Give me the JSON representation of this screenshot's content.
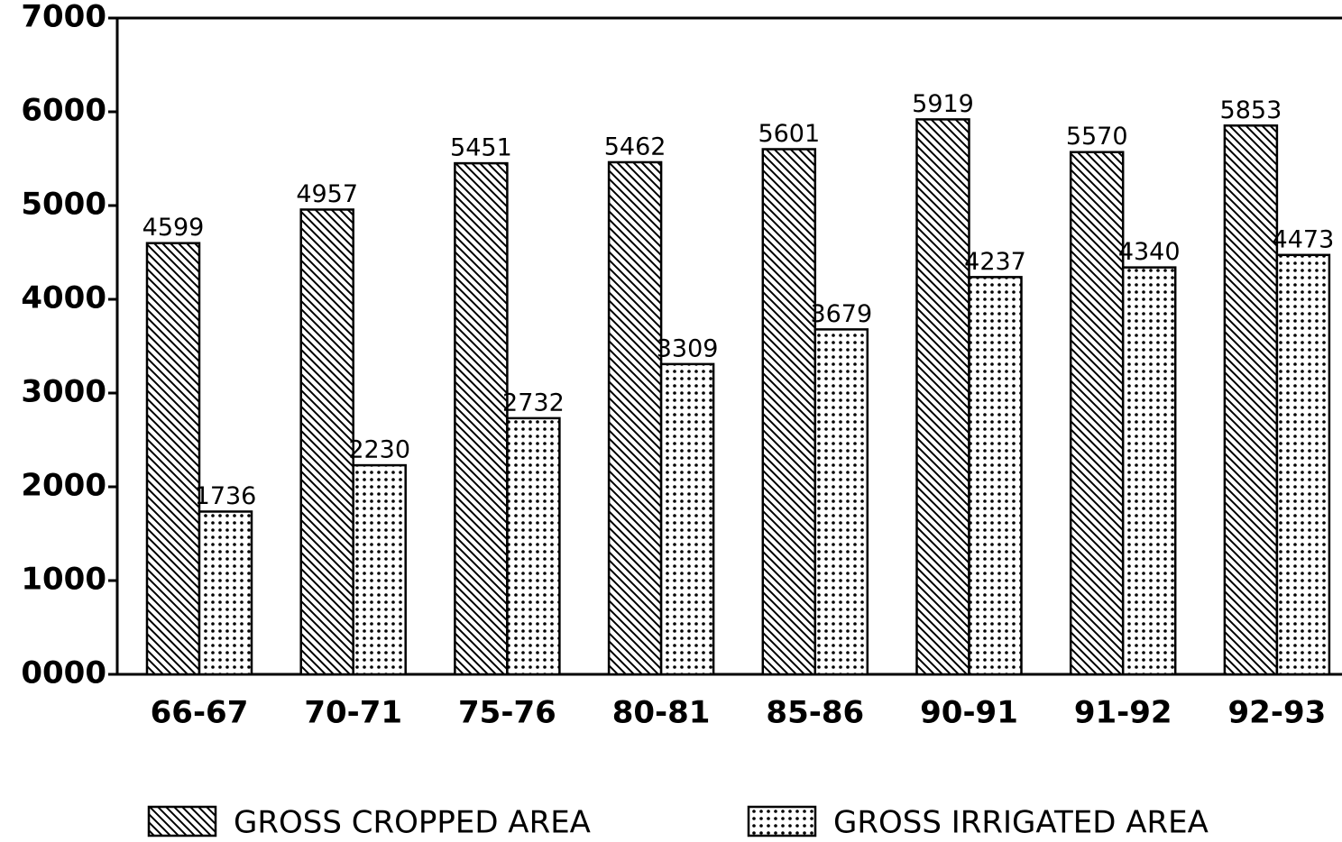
{
  "chart_data": {
    "type": "bar",
    "categories": [
      "66-67",
      "70-71",
      "75-76",
      "80-81",
      "85-86",
      "90-91",
      "91-92",
      "92-93"
    ],
    "series": [
      {
        "name": "GROSS CROPPED AREA",
        "color": "#000000",
        "pattern": "hatch",
        "values": [
          4599,
          4957,
          5451,
          5462,
          5601,
          5919,
          5570,
          5853
        ]
      },
      {
        "name": "GROSS IRRIGATED AREA",
        "color": "#000000",
        "pattern": "dots",
        "values": [
          1736,
          2230,
          2732,
          3309,
          3679,
          4237,
          4340,
          4473
        ]
      }
    ],
    "ylim": [
      0,
      7000
    ],
    "yticks": [
      {
        "value": 0,
        "label": "0000"
      },
      1000,
      2000,
      3000,
      4000,
      5000,
      6000,
      7000
    ],
    "grid": false,
    "legend": "bottom"
  }
}
